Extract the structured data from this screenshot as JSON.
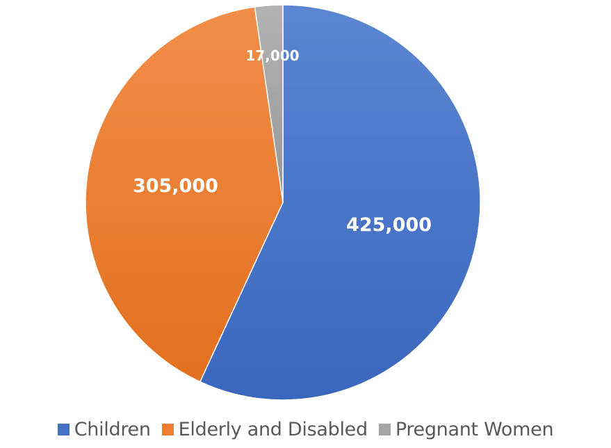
{
  "chart_data": {
    "type": "pie",
    "title": "",
    "categories": [
      "Children",
      "Elderly and Disabled",
      "Pregnant Women"
    ],
    "values": [
      425000,
      305000,
      17000
    ],
    "labels": [
      "425,000",
      "305,000",
      "17,000"
    ],
    "colors": [
      "#4472C4",
      "#ED7D31",
      "#A5A5A5"
    ],
    "start_angle_deg": 0,
    "direction": "clockwise",
    "legend_position": "bottom"
  },
  "legend": {
    "items": [
      {
        "label": "Children",
        "color": "#4472C4"
      },
      {
        "label": "Elderly and Disabled",
        "color": "#ED7D31"
      },
      {
        "label": "Pregnant Women",
        "color": "#A5A5A5"
      }
    ]
  }
}
